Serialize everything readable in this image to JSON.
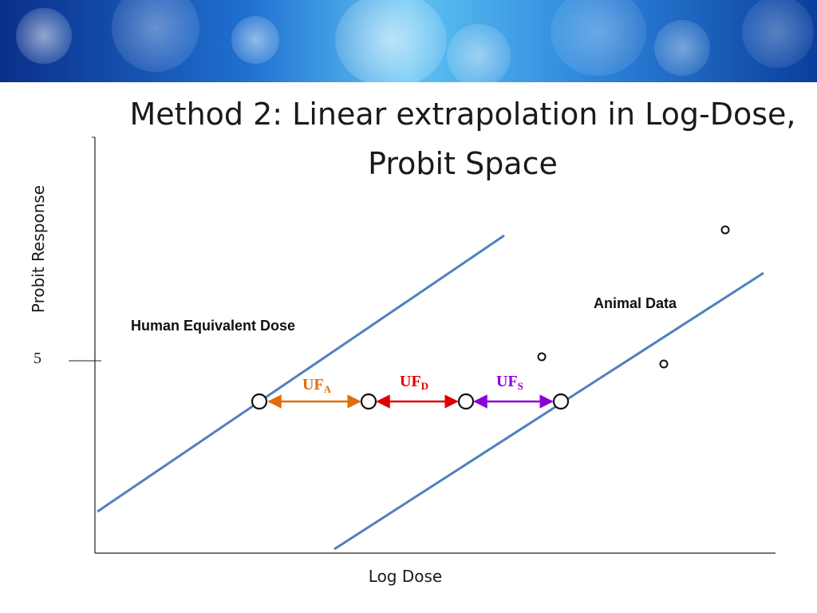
{
  "slide": {
    "title": "Method 2: Linear extrapolation in Log-Dose, Probit Space"
  },
  "axes": {
    "x_label": "Log Dose",
    "y_label": "Probit Response",
    "y_tick": "5"
  },
  "labels": {
    "human": "Human Equivalent Dose",
    "animal": "Animal Data"
  },
  "uncertainty_factors": [
    {
      "base": "UF",
      "sub": "A",
      "color": "#e36c09"
    },
    {
      "base": "UF",
      "sub": "D",
      "color": "#e00000"
    },
    {
      "base": "UF",
      "sub": "S",
      "color": "#8b00d6"
    }
  ],
  "colors": {
    "regression_line": "#4f81bd",
    "axis": "#222222"
  }
}
